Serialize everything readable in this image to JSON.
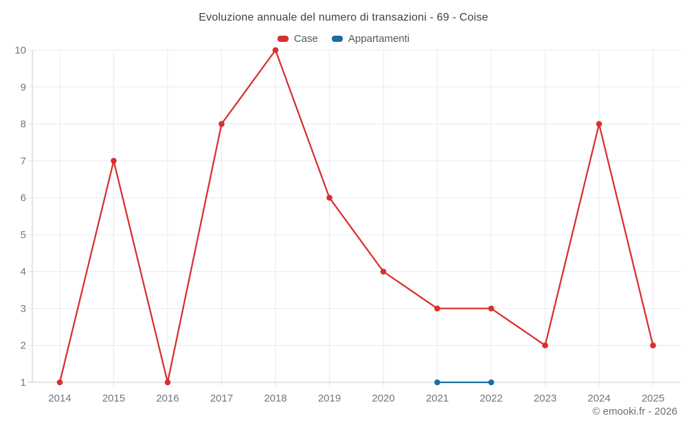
{
  "header": {
    "title": "Evoluzione annuale del numero di transazioni - 69 - Coise"
  },
  "legend": {
    "items": [
      {
        "label": "Case",
        "color": "#d8302f"
      },
      {
        "label": "Appartamenti",
        "color": "#1b6ca3"
      }
    ]
  },
  "footer": {
    "attribution": "© emooki.fr - 2026"
  },
  "chart_data": {
    "type": "line",
    "title": "Evoluzione annuale del numero di transazioni - 69 - Coise",
    "x": [
      2014,
      2015,
      2016,
      2017,
      2018,
      2019,
      2020,
      2021,
      2022,
      2023,
      2024,
      2025
    ],
    "series": [
      {
        "name": "Case",
        "color": "#d8302f",
        "values": [
          1,
          7,
          1,
          8,
          10,
          6,
          4,
          3,
          3,
          2,
          8,
          2
        ]
      },
      {
        "name": "Appartamenti",
        "color": "#1b6ca3",
        "values": [
          null,
          null,
          null,
          null,
          null,
          null,
          null,
          1,
          1,
          null,
          null,
          null
        ]
      }
    ],
    "ylim": [
      1,
      10
    ],
    "yticks": [
      1,
      2,
      3,
      4,
      5,
      6,
      7,
      8,
      9,
      10
    ],
    "grid": true,
    "legend_position": "top",
    "xlabel": "",
    "ylabel": "",
    "grid_color": "#e9e9e9",
    "axis_color": "#c9c9c9",
    "tick_label_color": "#757575"
  }
}
